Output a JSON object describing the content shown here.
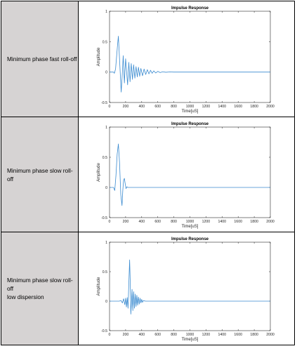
{
  "rows": [
    {
      "label": "Minimum phase fast roll-off"
    },
    {
      "label": "Minimum phase slow roll-off"
    },
    {
      "label": "Minimum phase slow roll-off\nlow dispersion"
    }
  ],
  "caption": "",
  "chart_data": [
    {
      "type": "line",
      "title": "Impulse Response",
      "xlabel": "Time[uS]",
      "ylabel": "Amplitude",
      "xlim": [
        0,
        2000
      ],
      "ylim": [
        -0.5,
        1
      ],
      "xticks": [
        0,
        200,
        400,
        600,
        800,
        1000,
        1200,
        1400,
        1600,
        1800,
        2000
      ],
      "yticks": [
        -0.5,
        0,
        0.5,
        1
      ],
      "ytick_labels": [
        "-0.5",
        "0",
        "0.5",
        "1"
      ],
      "color": "#3b8bd0",
      "x": [
        0,
        50,
        60,
        75,
        100,
        110,
        125,
        145,
        160,
        170,
        185,
        200,
        210,
        225,
        240,
        255,
        270,
        285,
        300,
        315,
        330,
        345,
        360,
        375,
        390,
        410,
        430,
        450,
        470,
        490,
        510,
        530,
        550,
        575,
        600,
        630,
        660,
        700,
        750,
        800,
        850,
        900,
        1000,
        1200,
        1500,
        2000
      ],
      "y": [
        0,
        0,
        -0.02,
        0.05,
        0.45,
        0.59,
        0.2,
        -0.33,
        0.0,
        0.27,
        -0.18,
        0.22,
        0.05,
        -0.21,
        0.16,
        -0.16,
        0.14,
        -0.12,
        0.12,
        -0.1,
        0.09,
        -0.08,
        0.08,
        -0.07,
        0.06,
        -0.06,
        0.05,
        -0.04,
        0.04,
        -0.03,
        0.03,
        -0.02,
        0.02,
        -0.015,
        0.012,
        -0.008,
        0.005,
        -0.003,
        0.002,
        0.0,
        0,
        0,
        0,
        0,
        0,
        0
      ]
    },
    {
      "type": "line",
      "title": "Impulse Response",
      "xlabel": "Time[uS]",
      "ylabel": "Amplitude",
      "xlim": [
        0,
        2000
      ],
      "ylim": [
        -0.5,
        1
      ],
      "xticks": [
        0,
        200,
        400,
        600,
        800,
        1000,
        1200,
        1400,
        1600,
        1800,
        2000
      ],
      "yticks": [
        -0.5,
        0,
        0.5,
        1
      ],
      "ytick_labels": [
        "-0.5",
        "0",
        "0.5",
        "1"
      ],
      "color": "#3b8bd0",
      "x": [
        0,
        50,
        65,
        80,
        95,
        110,
        125,
        140,
        155,
        165,
        175,
        185,
        195,
        205,
        215,
        230,
        250,
        300,
        2000
      ],
      "y": [
        0,
        0,
        -0.05,
        0.2,
        0.55,
        0.72,
        0.4,
        -0.12,
        -0.3,
        -0.05,
        0.12,
        0.15,
        0.06,
        -0.02,
        0.01,
        0.0,
        0,
        0,
        0
      ]
    },
    {
      "type": "line",
      "title": "Impulse Response",
      "xlabel": "Time[uS]",
      "ylabel": "Amplitude",
      "xlim": [
        0,
        2000
      ],
      "ylim": [
        -0.5,
        1
      ],
      "xticks": [
        0,
        200,
        400,
        600,
        800,
        1000,
        1200,
        1400,
        1600,
        1800,
        2000
      ],
      "yticks": [
        -0.5,
        0,
        0.5,
        1
      ],
      "ytick_labels": [
        "-0.5",
        "0",
        "0.5",
        "1"
      ],
      "color": "#3b8bd0",
      "x": [
        0,
        120,
        145,
        160,
        175,
        190,
        200,
        210,
        220,
        230,
        240,
        250,
        258,
        265,
        272,
        280,
        290,
        300,
        310,
        320,
        330,
        340,
        350,
        360,
        370,
        380,
        390,
        400,
        410,
        420,
        430,
        450,
        500,
        2000
      ],
      "y": [
        0,
        0,
        0.01,
        -0.03,
        0.04,
        -0.06,
        0.05,
        -0.1,
        0.06,
        -0.12,
        0.3,
        0.7,
        0.3,
        -0.22,
        -0.05,
        0.2,
        -0.16,
        0.16,
        -0.12,
        0.12,
        -0.09,
        0.1,
        -0.07,
        0.07,
        -0.05,
        0.05,
        -0.03,
        0.03,
        -0.02,
        0.01,
        0.005,
        0,
        0,
        0
      ]
    }
  ]
}
